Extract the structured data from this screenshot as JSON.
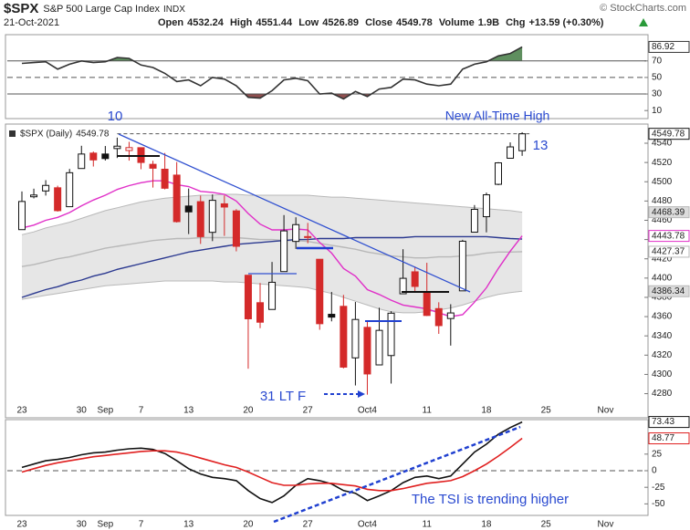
{
  "header": {
    "symbol": "$SPX",
    "name": "S&P 500 Large Cap Index",
    "exchange": "INDX",
    "credit": "© StockCharts.com",
    "date": "21-Oct-2021",
    "fields": [
      {
        "label": "Open",
        "value": 4532.24
      },
      {
        "label": "High",
        "value": 4551.44
      },
      {
        "label": "Low",
        "value": 4526.89
      },
      {
        "label": "Close",
        "value": 4549.78
      },
      {
        "label": "Volume",
        "value": "1.9B"
      },
      {
        "label": "Chg",
        "value": "+13.59 (+0.30%)"
      }
    ]
  },
  "chart_data": [
    {
      "type": "line",
      "ylim": [
        2.5,
        99.5
      ],
      "yticks": [
        70,
        50,
        30,
        10
      ],
      "reference_lines": [
        {
          "value": 70,
          "style": "solid",
          "fill": "#5f8f5f",
          "side": "above"
        },
        {
          "value": 50,
          "style": "dashed"
        },
        {
          "value": 30,
          "style": "solid",
          "fill": "#8f4f4f",
          "side": "below"
        }
      ],
      "series": [
        {
          "color": "#333333",
          "label_last": true,
          "values": [
            67,
            68,
            69,
            60,
            66,
            70,
            68,
            69,
            74,
            73,
            65,
            62,
            55,
            45,
            47,
            40,
            50,
            48,
            40,
            26,
            25,
            34,
            47,
            49,
            46,
            30,
            31,
            24,
            33,
            27,
            36,
            38,
            48,
            47,
            42,
            40,
            42,
            60,
            66,
            69,
            76,
            79,
            86.92
          ]
        }
      ]
    },
    {
      "type": "candlestick",
      "legend": "$SPX (Daily)",
      "categories": [
        "23",
        null,
        null,
        null,
        null,
        "30",
        null,
        "Sep",
        null,
        null,
        "7",
        null,
        null,
        null,
        "13",
        null,
        null,
        null,
        null,
        "20",
        null,
        null,
        null,
        null,
        "27",
        null,
        null,
        null,
        null,
        "Oct4",
        null,
        null,
        null,
        null,
        "11",
        null,
        null,
        null,
        null,
        "18",
        null,
        null,
        null,
        null,
        "25",
        null,
        null,
        null,
        null,
        "Nov"
      ],
      "open": [
        4450.29,
        4484.4,
        4490.45,
        4493.75,
        4474.1,
        4513.76,
        4529.75,
        4528.8,
        4534.48,
        4532.42,
        4535.38,
        4518.09,
        4513.02,
        4506.92,
        4474.81,
        4479.33,
        4447.49,
        4477.09,
        4469.74,
        4402.95,
        4374.45,
        4367.43,
        4406.75,
        4438.04,
        4442.12,
        4419.54,
        4362.41,
        4370.67,
        4317.16,
        4348.84,
        4309.87,
        4319.57,
        4383.73,
        4406.51,
        4385.44,
        4368.31,
        4358.01,
        4386.75,
        4447.69,
        4463.72,
        4497.34,
        4524.42,
        4532.24,
        null,
        null,
        null,
        null,
        null,
        null,
        null
      ],
      "high": [
        4489.88,
        4492.81,
        4501.71,
        4495.9,
        4513.33,
        4537.36,
        4531.39,
        4537.11,
        4545.85,
        4541.45,
        4535.38,
        4521.79,
        4529.9,
        4520.47,
        4492.99,
        4485.68,
        4486.87,
        4485.87,
        4471.52,
        4402.95,
        4394.87,
        4416.75,
        4465.4,
        4463.12,
        4457.3,
        4419.54,
        4385.57,
        4382.55,
        4375.19,
        4355.51,
        4369.23,
        4365.57,
        4429.97,
        4412.02,
        4415.88,
        4374.89,
        4372.87,
        4439.73,
        4475.82,
        4488.75,
        4520.4,
        4540.87,
        4551.44,
        null,
        null,
        null,
        null,
        null,
        null,
        null
      ],
      "low": [
        4450.29,
        4482.73,
        4485.66,
        4468.99,
        4474.1,
        4513.76,
        4515.8,
        4522.02,
        4524.66,
        4521.94,
        4513.0,
        4493.95,
        4492.07,
        4457.66,
        4445.7,
        4435.46,
        4438.37,
        4443.8,
        4427.76,
        4305.91,
        4347.96,
        4367.43,
        4406.75,
        4430.27,
        4436.19,
        4346.33,
        4355.08,
        4306.24,
        4288.52,
        4278.94,
        4309.87,
        4290.49,
        4383.73,
        4386.22,
        4360.59,
        4342.09,
        4329.92,
        4386.75,
        4447.69,
        4447.47,
        4496.41,
        4524.4,
        4526.89,
        null,
        null,
        null,
        null,
        null,
        null,
        null
      ],
      "close": [
        4479.53,
        4486.23,
        4496.19,
        4470.0,
        4509.37,
        4528.79,
        4522.68,
        4524.09,
        4536.95,
        4535.43,
        4520.03,
        4514.07,
        4493.28,
        4458.58,
        4468.73,
        4443.05,
        4480.7,
        4473.75,
        4432.99,
        4357.73,
        4354.19,
        4395.64,
        4448.98,
        4455.48,
        4443.11,
        4352.63,
        4359.46,
        4307.54,
        4357.04,
        4300.46,
        4345.72,
        4363.55,
        4399.76,
        4391.34,
        4361.19,
        4350.65,
        4363.8,
        4438.26,
        4471.37,
        4486.46,
        4519.63,
        4536.19,
        4549.78,
        null,
        null,
        null,
        null,
        null,
        null,
        null
      ],
      "up_color": "#111111",
      "down_color": "#d42a2a",
      "ylim": [
        4272,
        4558
      ],
      "yticks": [
        4540,
        4520,
        4500,
        4480,
        4460,
        4440,
        4420,
        4400,
        4380,
        4360,
        4340,
        4320,
        4300,
        4280
      ],
      "band": {
        "color": "#dcdcdc",
        "edge_color": "#b8b8b8",
        "upper": [
          4445,
          4448,
          4452,
          4455,
          4458,
          4462,
          4466,
          4470,
          4473,
          4476,
          4479,
          4481,
          4483,
          4484,
          4485,
          4486,
          4486,
          4487,
          4487,
          4486,
          4486,
          4486,
          4486,
          4486,
          4486,
          4485,
          4484,
          4484,
          4483,
          4482,
          4481,
          4480,
          4479,
          4478,
          4477,
          4476,
          4475,
          4474,
          4473,
          4472,
          4471,
          4470,
          4468.39,
          null,
          null,
          null,
          null,
          null,
          null,
          null
        ],
        "lower": [
          4378,
          4380,
          4382,
          4384,
          4386,
          4388,
          4390,
          4392,
          4393,
          4394,
          4395,
          4396,
          4397,
          4397,
          4397,
          4397,
          4397,
          4396,
          4396,
          4395,
          4394,
          4393,
          4392,
          4391,
          4390,
          4387,
          4384,
          4380,
          4376,
          4372,
          4368,
          4365,
          4364,
          4364,
          4365,
          4367,
          4369,
          4372,
          4376,
          4380,
          4383,
          4385,
          4386.34,
          null,
          null,
          null,
          null,
          null,
          null,
          null
        ]
      },
      "series": [
        {
          "color": "#b8b8b8",
          "label_last": true,
          "values": [
            4412,
            4414,
            4417,
            4420,
            4422,
            4425,
            4428,
            4431,
            4433,
            4435,
            4437,
            4439,
            4440,
            4441,
            4441,
            4442,
            4442,
            4442,
            4442,
            4441,
            4440,
            4440,
            4439,
            4439,
            4438,
            4436,
            4434,
            4432,
            4430,
            4427,
            4425,
            4423,
            4422,
            4421,
            4421,
            4422,
            4422,
            4423,
            4424,
            4426,
            4427,
            4427,
            4427.37,
            null,
            null,
            null,
            null,
            null,
            null,
            null
          ]
        },
        {
          "color": "#2b3990",
          "label_last": false,
          "values": [
            4380,
            4384,
            4388,
            4391,
            4395,
            4398,
            4402,
            4405,
            4409,
            4412,
            4415,
            4418,
            4421,
            4424,
            4427,
            4429,
            4431,
            4433,
            4435,
            4436,
            4437,
            4438,
            4439,
            4440,
            4440,
            4441,
            4441,
            4441,
            4442,
            4442,
            4442,
            4442,
            4442,
            4443,
            4443,
            4443,
            4443,
            4443,
            4443,
            4443,
            4442,
            4441,
            4440.5,
            null,
            null,
            null,
            null,
            null,
            null,
            null
          ]
        },
        {
          "color": "#e030c8",
          "label_last": true,
          "values": [
            4452,
            4455,
            4460,
            4463,
            4468,
            4475,
            4481,
            4486,
            4492,
            4496,
            4499,
            4501,
            4501,
            4497,
            4495,
            4490,
            4489,
            4487,
            4480,
            4467,
            4456,
            4450,
            4450,
            4451,
            4450,
            4437,
            4426,
            4410,
            4402,
            4388,
            4383,
            4377,
            4372,
            4370,
            4368,
            4364,
            4360,
            4362,
            4375,
            4390,
            4410,
            4428,
            4443.78,
            null,
            null,
            null,
            null,
            null,
            null,
            null
          ]
        }
      ],
      "annotations": [
        {
          "text": "10"
        },
        {
          "text": "New All-Time High"
        },
        {
          "text": "13"
        },
        {
          "text": "31 LT F"
        }
      ],
      "annotation_color": "#2a4ad0"
    },
    {
      "type": "line",
      "categories": [
        "23",
        null,
        null,
        null,
        null,
        "30",
        null,
        "Sep",
        null,
        null,
        "7",
        null,
        null,
        null,
        "13",
        null,
        null,
        null,
        null,
        "20",
        null,
        null,
        null,
        null,
        "27",
        null,
        null,
        null,
        null,
        "Oct4",
        null,
        null,
        null,
        null,
        "11",
        null,
        null,
        null,
        null,
        "18",
        null,
        null,
        null,
        null,
        "25",
        null,
        null,
        null,
        null,
        "Nov"
      ],
      "ylim": [
        -55,
        77
      ],
      "yticks": [
        25,
        0,
        -25,
        -50
      ],
      "reference_lines": [
        {
          "value": 0,
          "style": "dashed"
        }
      ],
      "series": [
        {
          "color": "#111111",
          "label_last": true,
          "values": [
            5,
            10,
            15,
            17,
            20,
            24,
            27,
            28,
            31,
            33,
            34,
            32,
            26,
            15,
            3,
            -5,
            -10,
            -12,
            -15,
            -30,
            -42,
            -48,
            -38,
            -22,
            -12,
            -15,
            -20,
            -30,
            -34,
            -45,
            -38,
            -30,
            -18,
            -10,
            -8,
            -12,
            -8,
            10,
            28,
            40,
            55,
            65,
            73.43,
            null,
            null,
            null,
            null,
            null,
            null,
            null
          ]
        },
        {
          "color": "#e02020",
          "label_last": true,
          "values": [
            -2,
            3,
            8,
            12,
            15,
            18,
            21,
            23,
            25,
            27,
            29,
            30,
            30,
            28,
            24,
            19,
            14,
            9,
            5,
            -2,
            -10,
            -18,
            -22,
            -22,
            -20,
            -19,
            -19,
            -21,
            -23,
            -28,
            -30,
            -30,
            -27,
            -23,
            -19,
            -17,
            -15,
            -9,
            0,
            10,
            22,
            35,
            48.77,
            null,
            null,
            null,
            null,
            null,
            null,
            null
          ]
        }
      ],
      "annotations": [
        {
          "text": "The TSI is trending higher"
        }
      ],
      "annotation_color": "#2a4ad0"
    }
  ]
}
